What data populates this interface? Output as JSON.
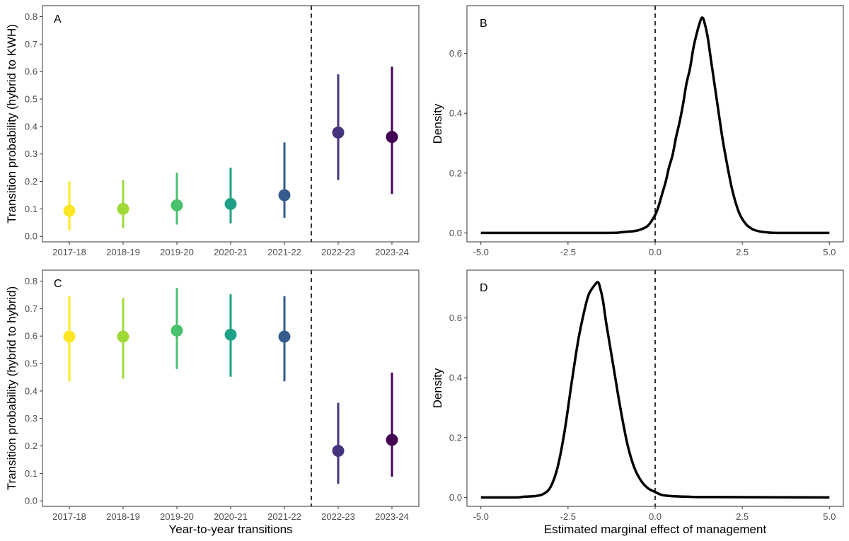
{
  "chart_data": [
    {
      "panel": "A",
      "type": "scatter",
      "subtype": "point-range",
      "title": "",
      "xlabel": "",
      "ylabel": "Transition probability (hybrid to KWH)",
      "categories": [
        "2017-18",
        "2018-19",
        "2019-20",
        "2020-21",
        "2021-22",
        "2022-23",
        "2023-24"
      ],
      "values": [
        0.093,
        0.1,
        0.113,
        0.118,
        0.15,
        0.378,
        0.362
      ],
      "lower": [
        0.022,
        0.03,
        0.043,
        0.047,
        0.068,
        0.205,
        0.155
      ],
      "upper": [
        0.2,
        0.205,
        0.232,
        0.25,
        0.342,
        0.59,
        0.618
      ],
      "colors": [
        "#FDE725",
        "#A0DA39",
        "#4AC16D",
        "#1FA187",
        "#365C8D",
        "#46337E",
        "#440154"
      ],
      "yticks": [
        "0.0",
        "0.1",
        "0.2",
        "0.3",
        "0.4",
        "0.5",
        "0.6",
        "0.7",
        "0.8"
      ],
      "ylim": [
        -0.02,
        0.84
      ],
      "divider_after_category": "2021-22",
      "grid": false
    },
    {
      "panel": "B",
      "type": "line",
      "title": "",
      "xlabel": "",
      "ylabel": "Density",
      "x": [
        -5.0,
        -1.5,
        -1.0,
        -0.8,
        -0.6,
        -0.4,
        -0.2,
        0.0,
        0.1,
        0.2,
        0.3,
        0.4,
        0.5,
        0.6,
        0.7,
        0.8,
        0.9,
        1.0,
        1.1,
        1.2,
        1.3,
        1.35,
        1.4,
        1.5,
        1.6,
        1.7,
        1.8,
        1.9,
        2.0,
        2.2,
        2.4,
        2.6,
        2.8,
        3.0,
        3.2,
        3.5,
        5.0
      ],
      "y": [
        0.0,
        0.0,
        0.002,
        0.004,
        0.006,
        0.012,
        0.025,
        0.06,
        0.09,
        0.13,
        0.17,
        0.22,
        0.26,
        0.32,
        0.37,
        0.43,
        0.5,
        0.55,
        0.62,
        0.67,
        0.71,
        0.72,
        0.71,
        0.66,
        0.58,
        0.5,
        0.42,
        0.34,
        0.27,
        0.15,
        0.07,
        0.03,
        0.012,
        0.005,
        0.002,
        0.0,
        0.0
      ],
      "xticks": [
        "-5.0",
        "-2.5",
        "0.0",
        "2.5",
        "5.0"
      ],
      "yticks": [
        "0.0",
        "0.2",
        "0.4",
        "0.6"
      ],
      "xlim": [
        -5.4,
        5.4
      ],
      "ylim": [
        -0.03,
        0.76
      ],
      "reference_line_x": 0.0,
      "grid": false
    },
    {
      "panel": "C",
      "type": "scatter",
      "subtype": "point-range",
      "title": "",
      "xlabel": "Year-to-year transitions",
      "ylabel": "Transition probability (hybrid to hybrid)",
      "categories": [
        "2017-18",
        "2018-19",
        "2019-20",
        "2020-21",
        "2021-22",
        "2022-23",
        "2023-24"
      ],
      "values": [
        0.598,
        0.598,
        0.62,
        0.605,
        0.598,
        0.182,
        0.222
      ],
      "lower": [
        0.435,
        0.445,
        0.48,
        0.452,
        0.435,
        0.062,
        0.088
      ],
      "upper": [
        0.745,
        0.738,
        0.775,
        0.752,
        0.745,
        0.357,
        0.467
      ],
      "colors": [
        "#FDE725",
        "#A0DA39",
        "#4AC16D",
        "#1FA187",
        "#365C8D",
        "#46337E",
        "#440154"
      ],
      "yticks": [
        "0.0",
        "0.1",
        "0.2",
        "0.3",
        "0.4",
        "0.5",
        "0.6",
        "0.7",
        "0.8"
      ],
      "ylim": [
        -0.02,
        0.84
      ],
      "divider_after_category": "2021-22",
      "grid": false
    },
    {
      "panel": "D",
      "type": "line",
      "title": "",
      "xlabel": "Estimated marginal effect of management",
      "ylabel": "Density",
      "x": [
        -5.0,
        -4.0,
        -3.8,
        -3.6,
        -3.4,
        -3.2,
        -3.0,
        -2.8,
        -2.6,
        -2.4,
        -2.2,
        -2.0,
        -1.9,
        -1.8,
        -1.7,
        -1.65,
        -1.6,
        -1.5,
        -1.4,
        -1.2,
        -1.0,
        -0.8,
        -0.6,
        -0.4,
        -0.2,
        0.0,
        0.2,
        0.5,
        1.0,
        1.5,
        5.0
      ],
      "y": [
        0.0,
        0.0,
        0.002,
        0.003,
        0.005,
        0.012,
        0.035,
        0.1,
        0.22,
        0.38,
        0.53,
        0.64,
        0.68,
        0.7,
        0.715,
        0.72,
        0.71,
        0.66,
        0.58,
        0.44,
        0.3,
        0.18,
        0.1,
        0.055,
        0.03,
        0.018,
        0.008,
        0.004,
        0.002,
        0.001,
        0.0
      ],
      "xticks": [
        "-5.0",
        "-2.5",
        "0.0",
        "2.5",
        "5.0"
      ],
      "yticks": [
        "0.0",
        "0.2",
        "0.4",
        "0.6"
      ],
      "xlim": [
        -5.4,
        5.4
      ],
      "ylim": [
        -0.03,
        0.76
      ],
      "reference_line_x": 0.0,
      "grid": false
    }
  ]
}
